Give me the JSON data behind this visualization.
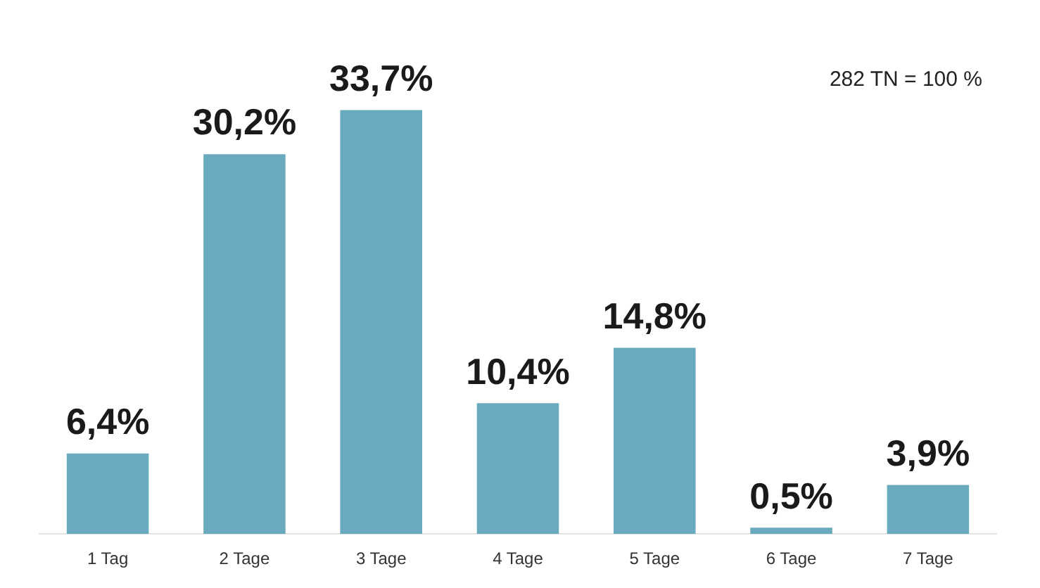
{
  "chart_data": {
    "type": "bar",
    "categories": [
      "1 Tag",
      "2 Tage",
      "3 Tage",
      "4 Tage",
      "5 Tage",
      "6 Tage",
      "7 Tage"
    ],
    "values": [
      6.4,
      30.2,
      33.7,
      10.4,
      14.8,
      0.5,
      3.9
    ],
    "value_labels": [
      "6,4%",
      "30,2%",
      "33,7%",
      "10,4%",
      "14,8%",
      "0,5%",
      "3,9%"
    ],
    "color": "#6aaabf",
    "annotations": [
      "282 TN = 100 %"
    ],
    "grid": false,
    "legend": false
  }
}
